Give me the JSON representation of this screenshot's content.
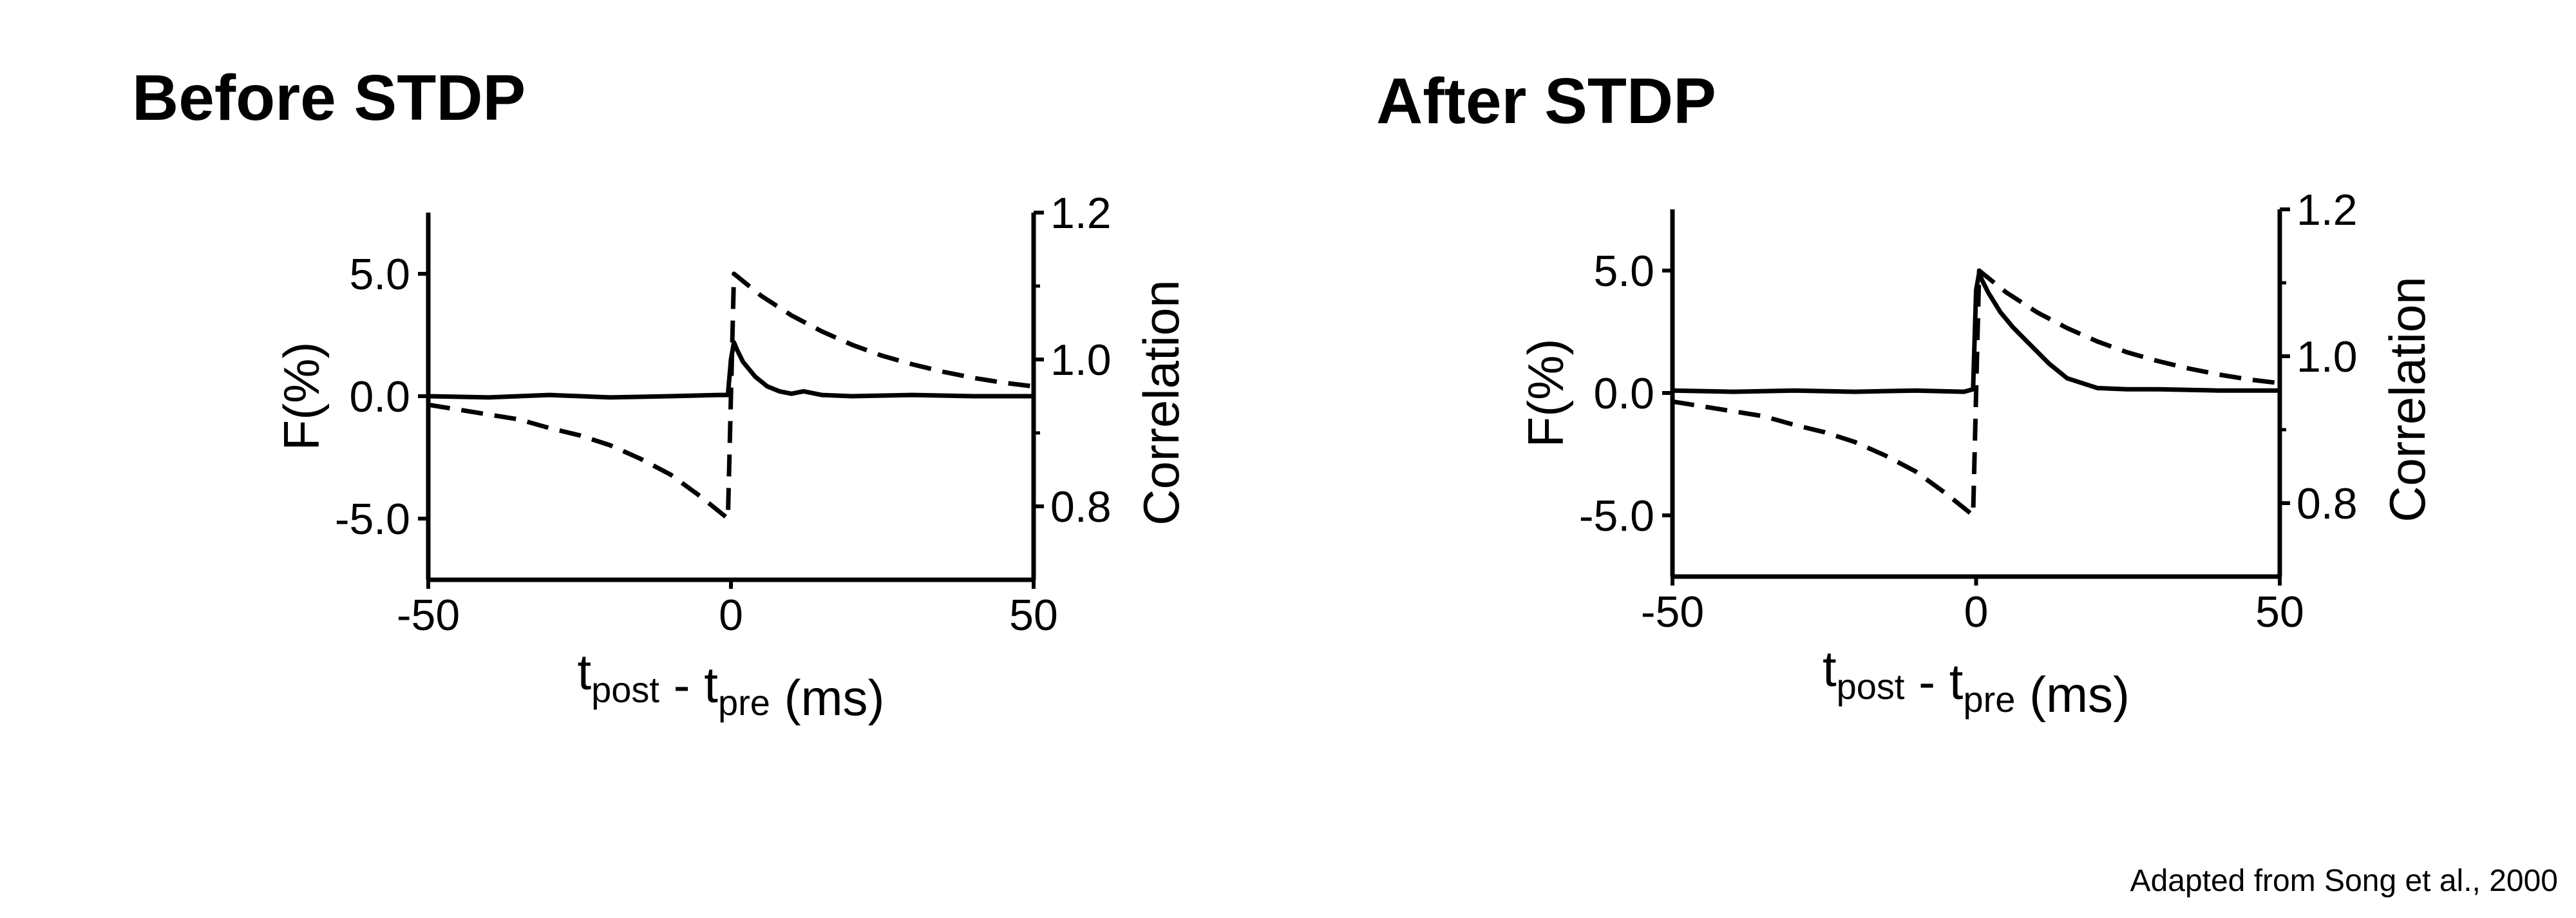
{
  "credit": "Adapted from Song et al., 2000",
  "chart_data": [
    {
      "type": "line",
      "title": "Before STDP",
      "xlabel": {
        "main": "t",
        "sub1": "post",
        "mid": " - t",
        "sub2": "pre",
        "end": " (ms)"
      },
      "ylabel": "F(%)",
      "y2label": "Correlation",
      "xlim": [
        -50,
        50
      ],
      "ylim": [
        -7.5,
        7.5
      ],
      "y2lim": [
        0.7,
        1.2
      ],
      "xticks": [
        "-50",
        "0",
        "50"
      ],
      "xtick_values": [
        -50,
        0,
        50
      ],
      "yticks": [
        "5.0",
        "0.0",
        "-5.0"
      ],
      "ytick_values": [
        5,
        0,
        -5
      ],
      "y2ticks": [
        "1.2",
        "1.0",
        "0.8"
      ],
      "y2tick_values": [
        1.2,
        1.0,
        0.8
      ],
      "series": [
        {
          "style": "dashed",
          "axis": "left",
          "x": [
            -50,
            -45,
            -40,
            -35,
            -30,
            -25,
            -20,
            -15,
            -10,
            -5,
            -0.5,
            0.5,
            5,
            10,
            15,
            20,
            25,
            30,
            35,
            40,
            45,
            50
          ],
          "y": [
            -0.35,
            -0.55,
            -0.75,
            -0.95,
            -1.3,
            -1.6,
            -2.0,
            -2.55,
            -3.2,
            -4.1,
            -5.0,
            5.0,
            4.1,
            3.3,
            2.65,
            2.1,
            1.65,
            1.3,
            1.0,
            0.75,
            0.55,
            0.4
          ]
        },
        {
          "style": "solid",
          "axis": "left",
          "x": [
            -50,
            -40,
            -30,
            -20,
            -10,
            -2,
            -0.5,
            0,
            0.5,
            1,
            2,
            3,
            4,
            5,
            6,
            8,
            10,
            12,
            15,
            20,
            30,
            40,
            50
          ],
          "y": [
            0.0,
            -0.05,
            0.05,
            -0.05,
            0.0,
            0.05,
            0.05,
            1.5,
            2.2,
            1.9,
            1.4,
            1.1,
            0.8,
            0.6,
            0.4,
            0.2,
            0.1,
            0.2,
            0.05,
            0.0,
            0.05,
            0.0,
            0.0
          ]
        }
      ]
    },
    {
      "type": "line",
      "title": "After STDP",
      "xlabel": {
        "main": "t",
        "sub1": "post",
        "mid": " - t",
        "sub2": "pre",
        "end": " (ms)"
      },
      "ylabel": "F(%)",
      "y2label": "Correlation",
      "xlim": [
        -50,
        50
      ],
      "ylim": [
        -7.5,
        7.5
      ],
      "y2lim": [
        0.7,
        1.2
      ],
      "xticks": [
        "-50",
        "0",
        "50"
      ],
      "xtick_values": [
        -50,
        0,
        50
      ],
      "yticks": [
        "5.0",
        "0.0",
        "-5.0"
      ],
      "ytick_values": [
        5,
        0,
        -5
      ],
      "y2ticks": [
        "1.2",
        "1.0",
        "0.8"
      ],
      "y2tick_values": [
        1.2,
        1.0,
        0.8
      ],
      "series": [
        {
          "style": "dashed",
          "axis": "left",
          "x": [
            -50,
            -45,
            -40,
            -35,
            -30,
            -25,
            -20,
            -15,
            -10,
            -5,
            -0.5,
            0.5,
            5,
            10,
            15,
            20,
            25,
            30,
            35,
            40,
            45,
            50
          ],
          "y": [
            -0.35,
            -0.55,
            -0.75,
            -0.95,
            -1.3,
            -1.6,
            -2.0,
            -2.55,
            -3.2,
            -4.1,
            -5.0,
            5.0,
            4.1,
            3.3,
            2.65,
            2.1,
            1.65,
            1.3,
            1.0,
            0.75,
            0.55,
            0.4
          ]
        },
        {
          "style": "solid",
          "axis": "left",
          "x": [
            -50,
            -40,
            -30,
            -20,
            -10,
            -2,
            -0.5,
            0,
            0.5,
            1,
            2,
            3,
            4,
            5,
            6,
            8,
            10,
            12,
            15,
            20,
            25,
            30,
            40,
            50
          ],
          "y": [
            0.1,
            0.05,
            0.1,
            0.05,
            0.1,
            0.05,
            0.15,
            4.2,
            4.9,
            4.6,
            4.1,
            3.7,
            3.3,
            3.0,
            2.7,
            2.2,
            1.7,
            1.2,
            0.6,
            0.2,
            0.15,
            0.15,
            0.1,
            0.1
          ]
        }
      ]
    }
  ]
}
